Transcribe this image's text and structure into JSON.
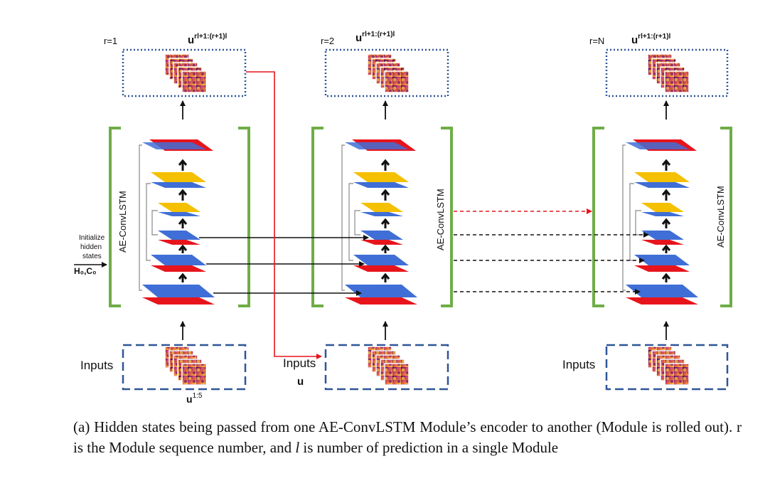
{
  "modules": [
    {
      "r_label": "r=1",
      "output_label": "u",
      "output_sup": "rl+1:(r+1)l",
      "input_label": "Inputs",
      "input_sub_label": "u",
      "input_sub_sup": "1:5",
      "side_label": "AE-ConvLSTM"
    },
    {
      "r_label": "r=2",
      "output_label": "u",
      "output_sup": "rl+1:(r+1)l",
      "input_label": "Inputs",
      "input_sub_label": "u",
      "side_label": "AE-ConvLSTM"
    },
    {
      "r_label": "r=N",
      "output_label": "u",
      "output_sup": "rl+1:(r+1)l",
      "input_label": "Inputs",
      "side_label": "AE-ConvLSTM"
    }
  ],
  "init": {
    "line1": "Initialize",
    "line2": "hidden",
    "line3": "states",
    "state_label": "H₀,C₀"
  },
  "caption": {
    "part1": "(a) Hidden states being passed from one AE-ConvLSTM Module’s encoder to another (Module is rolled out). r is the Module sequence number, and ",
    "var": "l",
    "part2": " is number of prediction in a single Module"
  },
  "colors": {
    "red": "#e8141c",
    "blue": "#3f6fd6",
    "yellow": "#f5c000",
    "green": "#6fad47",
    "dotted_box": "#2f5597",
    "dashed_box": "#2f5597",
    "red_arrow": "#e8141c"
  }
}
